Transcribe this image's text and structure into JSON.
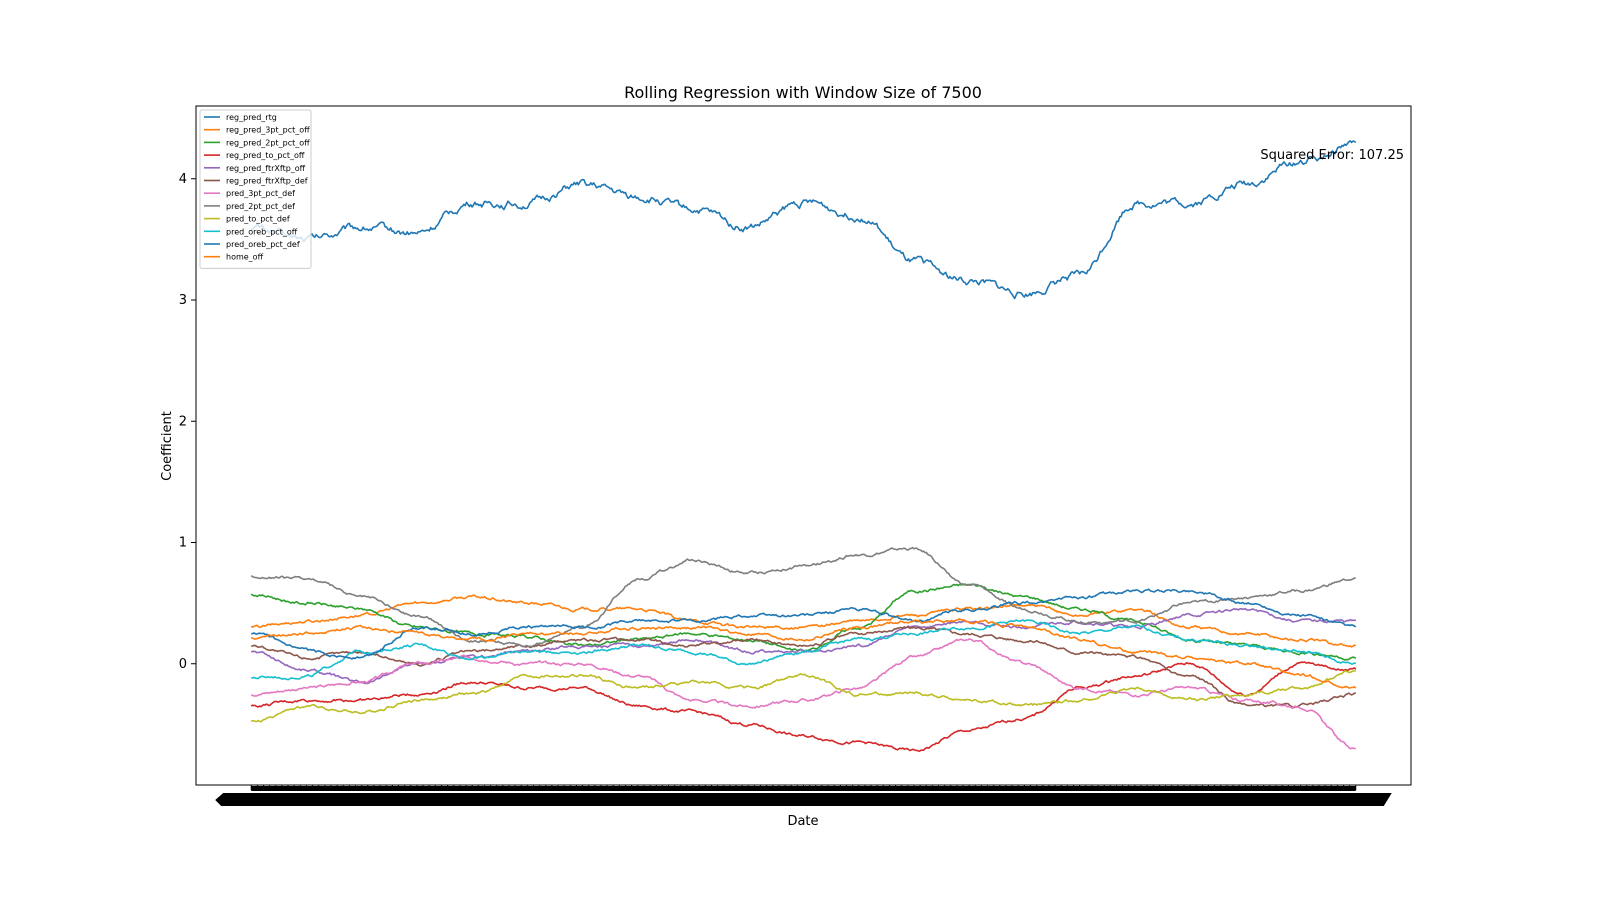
{
  "chart_data": {
    "type": "line",
    "title": "Rolling Regression with Window Size of 7500",
    "xlabel": "Date",
    "ylabel": "Coefficient",
    "ylim": [
      -1.0,
      4.6
    ],
    "yticks": [
      0,
      1,
      2,
      3,
      4
    ],
    "xlim": [
      -0.05,
      1.05
    ],
    "grid": false,
    "legend_position": "top-left",
    "annotation": "Squared Error: 107.25",
    "x_tick_labels_note": "dense overlapping date tick labels (illegible)",
    "x": [
      0.0,
      0.05,
      0.1,
      0.15,
      0.2,
      0.25,
      0.3,
      0.35,
      0.4,
      0.45,
      0.5,
      0.55,
      0.6,
      0.65,
      0.7,
      0.75,
      0.8,
      0.85,
      0.9,
      0.95,
      1.0
    ],
    "series": [
      {
        "name": "reg_pred_rtg",
        "color": "#1f77b4",
        "values": [
          3.6,
          3.5,
          3.6,
          3.55,
          3.8,
          3.8,
          3.95,
          3.85,
          3.75,
          3.6,
          3.8,
          3.7,
          3.3,
          3.15,
          3.05,
          3.2,
          3.8,
          3.8,
          3.95,
          4.15,
          4.3
        ]
      },
      {
        "name": "reg_pred_3pt_pct_off",
        "color": "#ff7f0e",
        "values": [
          0.3,
          0.35,
          0.4,
          0.5,
          0.55,
          0.5,
          0.45,
          0.45,
          0.35,
          0.3,
          0.3,
          0.35,
          0.4,
          0.45,
          0.48,
          0.4,
          0.45,
          0.3,
          0.25,
          0.2,
          0.15
        ]
      },
      {
        "name": "reg_pred_2pt_pct_off",
        "color": "#2ca02c",
        "values": [
          0.57,
          0.5,
          0.45,
          0.3,
          0.25,
          0.22,
          0.15,
          0.2,
          0.25,
          0.2,
          0.1,
          0.3,
          0.6,
          0.65,
          0.55,
          0.45,
          0.35,
          0.2,
          0.15,
          0.1,
          0.05
        ]
      },
      {
        "name": "reg_pred_to_pct_off",
        "color": "#d62728",
        "values": [
          -0.35,
          -0.3,
          -0.3,
          -0.25,
          -0.15,
          -0.2,
          -0.2,
          -0.35,
          -0.4,
          -0.5,
          -0.6,
          -0.65,
          -0.72,
          -0.55,
          -0.45,
          -0.2,
          -0.1,
          0.0,
          -0.25,
          0.0,
          -0.05
        ]
      },
      {
        "name": "reg_pred_ftrXftp_off",
        "color": "#9467bd",
        "values": [
          0.1,
          -0.05,
          -0.15,
          0.0,
          0.05,
          0.1,
          0.15,
          0.15,
          0.2,
          0.1,
          0.1,
          0.15,
          0.3,
          0.35,
          0.3,
          0.35,
          0.3,
          0.4,
          0.45,
          0.35,
          0.35
        ]
      },
      {
        "name": "reg_pred_ftrXftp_def",
        "color": "#8c564b",
        "values": [
          0.15,
          0.05,
          0.1,
          0.0,
          0.1,
          0.15,
          0.2,
          0.2,
          0.15,
          0.2,
          0.15,
          0.25,
          0.3,
          0.25,
          0.2,
          0.1,
          0.05,
          -0.1,
          -0.35,
          -0.35,
          -0.25
        ]
      },
      {
        "name": "pred_3pt_pct_def",
        "color": "#e377c2",
        "values": [
          -0.25,
          -0.2,
          -0.15,
          0.0,
          0.05,
          0.0,
          0.0,
          -0.1,
          -0.3,
          -0.35,
          -0.3,
          -0.2,
          0.05,
          0.2,
          0.0,
          -0.2,
          -0.25,
          -0.2,
          -0.3,
          -0.35,
          -0.7
        ]
      },
      {
        "name": "pred_2pt_pct_def",
        "color": "#7f7f7f",
        "values": [
          0.72,
          0.7,
          0.55,
          0.4,
          0.2,
          0.15,
          0.3,
          0.7,
          0.85,
          0.75,
          0.8,
          0.9,
          0.95,
          0.65,
          0.45,
          0.35,
          0.35,
          0.5,
          0.55,
          0.6,
          0.7
        ]
      },
      {
        "name": "pred_to_pct_def",
        "color": "#bcbd22",
        "values": [
          -0.48,
          -0.35,
          -0.4,
          -0.3,
          -0.25,
          -0.1,
          -0.1,
          -0.2,
          -0.15,
          -0.2,
          -0.1,
          -0.25,
          -0.25,
          -0.3,
          -0.35,
          -0.3,
          -0.2,
          -0.3,
          -0.25,
          -0.2,
          -0.05
        ]
      },
      {
        "name": "pred_oreb_pct_off",
        "color": "#17becf",
        "values": [
          -0.12,
          -0.1,
          0.1,
          0.15,
          0.05,
          0.1,
          0.1,
          0.15,
          0.1,
          0.0,
          0.1,
          0.2,
          0.25,
          0.3,
          0.35,
          0.25,
          0.3,
          0.2,
          0.15,
          0.1,
          0.0
        ]
      },
      {
        "name": "pred_oreb_pct_def",
        "color": "#1f77b4",
        "values": [
          0.25,
          0.1,
          0.05,
          0.3,
          0.25,
          0.3,
          0.3,
          0.35,
          0.35,
          0.4,
          0.4,
          0.45,
          0.35,
          0.45,
          0.5,
          0.55,
          0.6,
          0.6,
          0.5,
          0.4,
          0.3
        ]
      },
      {
        "name": "home_off",
        "color": "#ff7f0e",
        "values": [
          0.22,
          0.25,
          0.3,
          0.25,
          0.2,
          0.25,
          0.25,
          0.3,
          0.3,
          0.25,
          0.2,
          0.3,
          0.35,
          0.35,
          0.3,
          0.2,
          0.1,
          0.05,
          0.0,
          -0.1,
          -0.2
        ]
      }
    ]
  }
}
